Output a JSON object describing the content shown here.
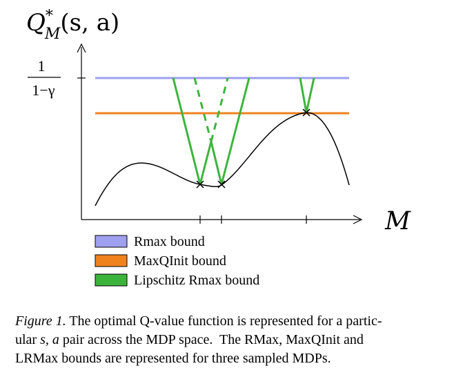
{
  "figure": {
    "y_axis_label": "Q*_M(s,a)",
    "y_axis_label_main": "Q",
    "y_axis_label_sup": "*",
    "y_axis_label_sub": "M",
    "y_axis_label_args": "(s, a)",
    "y_tick_numerator": "1",
    "y_tick_denominator": "1−γ",
    "x_axis_label": "M",
    "colors": {
      "rmax": "#9e9ef0",
      "maxqinit": "#f0821e",
      "lipschitz": "#3cb43c",
      "curve": "#000000"
    }
  },
  "legend": {
    "items": [
      {
        "label": "Rmax bound",
        "color": "#a0a0f0"
      },
      {
        "label": "MaxQInit bound",
        "color": "#f0821e"
      },
      {
        "label": "Lipschitz Rmax bound",
        "color": "#3cb43c"
      }
    ]
  },
  "caption": {
    "label": "Figure 1.",
    "line1_pre": " The optimal Q-value function is represented for a partic-",
    "line2_pre": "ular ",
    "line2_math": "s, a",
    "line2_post": " pair across the MDP space.  The RMax, MaxQInit and",
    "line3": "LRMax bounds are represented for three sampled MDPs."
  }
}
